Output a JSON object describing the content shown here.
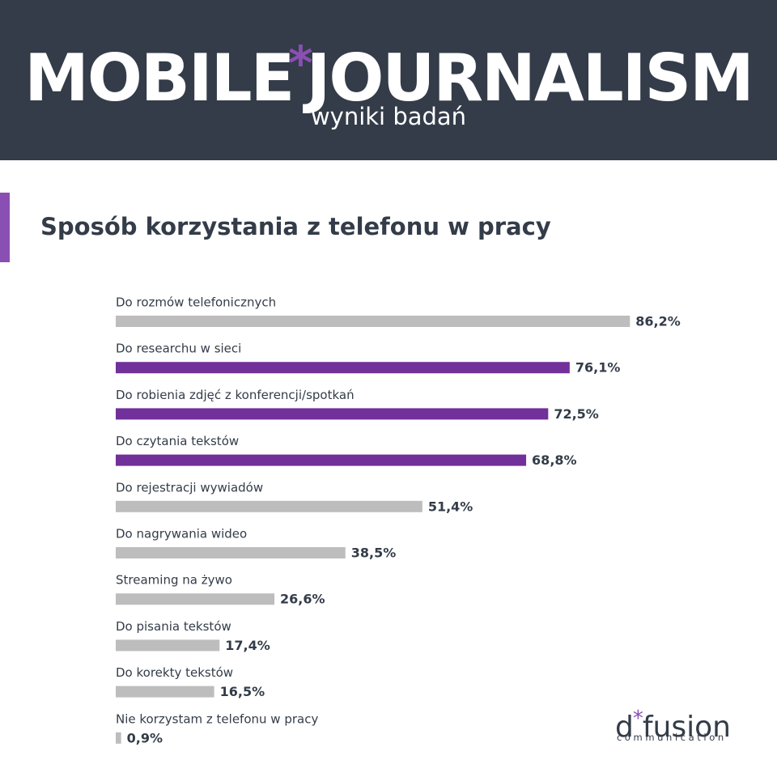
{
  "header": {
    "title_part1": "MOBILE",
    "title_asterisk": "*",
    "title_part2": "JOURNALISM",
    "subtitle": "wyniki badań"
  },
  "section": {
    "title": "Sposób korzystania z telefonu w pracy"
  },
  "colors": {
    "header_bg": "#333c48",
    "accent": "#8a4fb2",
    "bar_gray": "#bdbdbd",
    "bar_purple": "#71309a",
    "text_dark": "#333c48"
  },
  "chart_data": {
    "type": "bar",
    "orientation": "horizontal",
    "title": "Sposób korzystania z telefonu w pracy",
    "xlim": [
      0,
      100
    ],
    "unit": "%",
    "grid": false,
    "categories": [
      "Do rozmów telefonicznych",
      "Do researchu w sieci",
      "Do robienia zdjęć z konferencji/spotkań",
      "Do czytania tekstów",
      "Do rejestracji wywiadów",
      "Do nagrywania wideo",
      "Streaming na żywo",
      "Do pisania tekstów",
      "Do korekty tekstów",
      "Nie korzystam z telefonu w pracy"
    ],
    "values": [
      86.2,
      76.1,
      72.5,
      68.8,
      51.4,
      38.5,
      26.6,
      17.4,
      16.5,
      0.9
    ],
    "labels": [
      "86,2%",
      "76,1%",
      "72,5%",
      "68,8%",
      "51,4%",
      "38,5%",
      "26,6%",
      "17,4%",
      "16,5%",
      "0,9%"
    ],
    "highlighted": [
      false,
      true,
      true,
      true,
      false,
      false,
      false,
      false,
      false,
      false
    ]
  },
  "logo": {
    "part1": "d",
    "asterisk": "*",
    "part2": "fusion",
    "tagline": "communication"
  }
}
